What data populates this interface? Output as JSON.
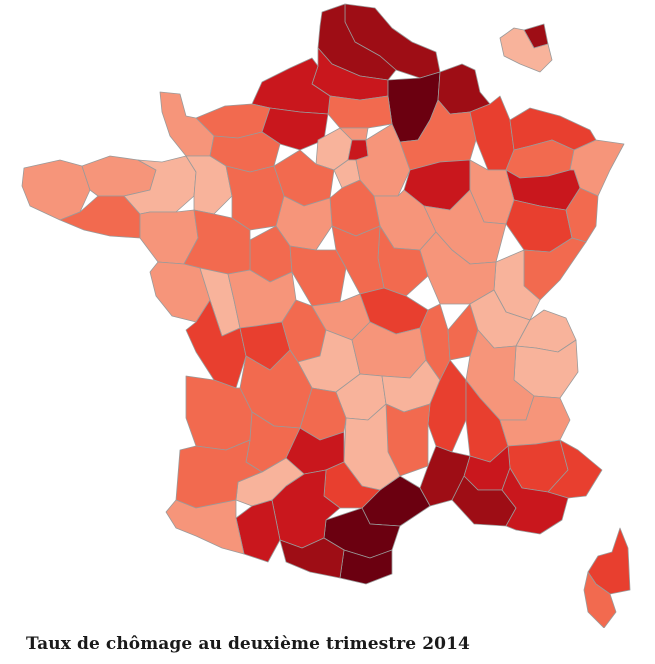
{
  "caption": "Taux de chômage au deuxième trimestre 2014",
  "palette": {
    "c1": "#f8b39b",
    "c2": "#f6957a",
    "c3": "#f26a4f",
    "c4": "#e83f2f",
    "c5": "#c9171d",
    "c6": "#9e0d15",
    "c7": "#6b0010"
  },
  "border_color": "#9a9a9a"
}
